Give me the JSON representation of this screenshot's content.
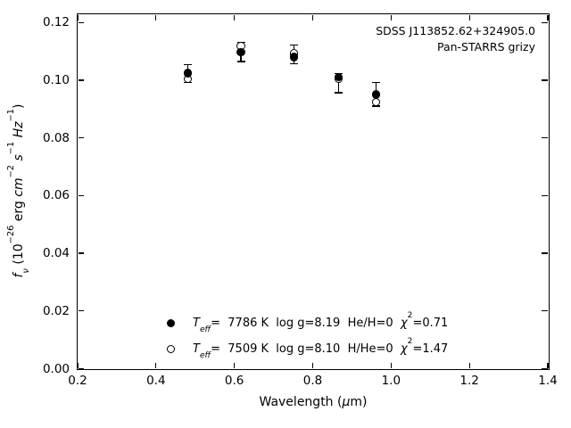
{
  "title": {
    "line1": "SDSS J113852.62+324905.0",
    "line2": "Pan-STARRS grizy"
  },
  "axes": {
    "xlabel_segments": [
      {
        "t": "Wavelength ("
      },
      {
        "t": "μ",
        "it": true
      },
      {
        "t": "m)"
      }
    ],
    "ylabel_segments": [
      {
        "t": "f",
        "it": true
      },
      {
        "t": "ν",
        "sub": true,
        "it": true
      },
      {
        "t": " (10"
      },
      {
        "t": "−26",
        "sup": true
      },
      {
        "t": " erg "
      },
      {
        "t": "cm",
        "it": true
      },
      {
        "t": "−2",
        "sup": true
      },
      {
        "t": " "
      },
      {
        "t": "s",
        "it": true
      },
      {
        "t": "−1",
        "sup": true
      },
      {
        "t": " "
      },
      {
        "t": "Hz",
        "it": true
      },
      {
        "t": "−1",
        "sup": true
      },
      {
        "t": ")"
      }
    ],
    "xticks": [
      {
        "v": 0.2,
        "label": "0.2"
      },
      {
        "v": 0.4,
        "label": "0.4"
      },
      {
        "v": 0.6,
        "label": "0.6"
      },
      {
        "v": 0.8,
        "label": "0.8"
      },
      {
        "v": 1.0,
        "label": "1.0"
      },
      {
        "v": 1.2,
        "label": "1.2"
      },
      {
        "v": 1.4,
        "label": "1.4"
      }
    ],
    "yticks": [
      {
        "v": 0.0,
        "label": "0.00"
      },
      {
        "v": 0.02,
        "label": "0.02"
      },
      {
        "v": 0.04,
        "label": "0.04"
      },
      {
        "v": 0.06,
        "label": "0.06"
      },
      {
        "v": 0.08,
        "label": "0.08"
      },
      {
        "v": 0.1,
        "label": "0.10"
      },
      {
        "v": 0.12,
        "label": "0.12"
      }
    ]
  },
  "legend": {
    "rows": [
      {
        "marker": "filled-circle",
        "segments": [
          {
            "t": "T",
            "it": true
          },
          {
            "t": "eff",
            "sub": true,
            "it": true
          },
          {
            "t": "=  7786 K  log g=8.19  He/H=0  "
          },
          {
            "t": "χ",
            "it": true
          },
          {
            "t": "2",
            "sup": true
          },
          {
            "t": "=0.71"
          }
        ]
      },
      {
        "marker": "open-circle",
        "segments": [
          {
            "t": "T",
            "it": true
          },
          {
            "t": "eff",
            "sub": true,
            "it": true
          },
          {
            "t": "=  7509 K  log g=8.10  H/He=0  "
          },
          {
            "t": "χ",
            "it": true
          },
          {
            "t": "2",
            "sup": true
          },
          {
            "t": "=1.47"
          }
        ]
      }
    ]
  },
  "chart_data": {
    "type": "scatter",
    "title": "SDSS J113852.62+324905.0",
    "subtitle": "Pan-STARRS grizy",
    "xlabel": "Wavelength (μm)",
    "ylabel": "f_ν (10⁻²⁶ erg cm⁻² s⁻¹ Hz⁻¹)",
    "xlim": [
      0.2,
      1.4
    ],
    "ylim": [
      0.0,
      0.1229
    ],
    "grid": false,
    "legend_position": "lower left inside",
    "bands": [
      "g",
      "r",
      "i",
      "z",
      "y"
    ],
    "x": [
      0.481,
      0.617,
      0.752,
      0.866,
      0.962
    ],
    "series": [
      {
        "name": "Teff= 7786 K  log g=8.19  He/H=0  χ²=0.71",
        "marker": "filled-circle",
        "values": [
          0.1025,
          0.1098,
          0.108,
          0.1011,
          0.095
        ]
      },
      {
        "name": "Teff= 7509 K  log g=8.10  H/He=0  χ²=1.47",
        "marker": "open-circle",
        "values": [
          0.1005,
          0.1119,
          0.1093,
          0.1005,
          0.0925
        ]
      }
    ],
    "error_bar_caps": {
      "top": [
        0.1055,
        0.1131,
        0.1123,
        0.1024,
        0.0993
      ],
      "bottom": [
        0.0993,
        0.1065,
        0.1057,
        0.0957,
        0.0911
      ]
    }
  }
}
